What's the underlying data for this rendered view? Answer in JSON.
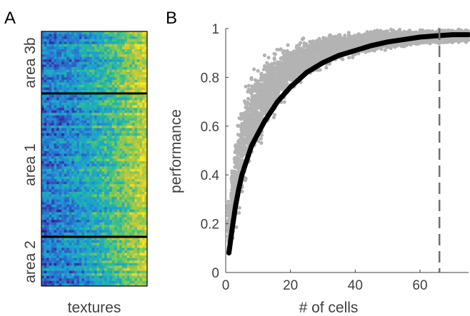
{
  "chart_data": [
    {
      "panel": "A",
      "type": "heatmap",
      "xlabel": "textures",
      "row_groups": [
        "area 3b",
        "area 1",
        "area 2"
      ],
      "colormap": [
        "#3e1a8e",
        "#2c66c9",
        "#1e9bd7",
        "#21b8a7",
        "#77c85a",
        "#c8c83b",
        "#f8e621"
      ]
    },
    {
      "panel": "B",
      "type": "scatter",
      "xlabel": "# of cells",
      "ylabel": "performance",
      "xlim": [
        0,
        75
      ],
      "ylim": [
        0,
        1
      ],
      "xticks": [
        "0",
        "20",
        "40",
        "60"
      ],
      "yticks": [
        "0",
        "0.2",
        "0.4",
        "0.6",
        "0.8",
        "1"
      ],
      "grid": false,
      "series": [
        {
          "kind": "scatter",
          "color": "#b3b3b3",
          "x": [
            1,
            2,
            3,
            4,
            5,
            6,
            7,
            8,
            10,
            12,
            14,
            16,
            18,
            20,
            25,
            30,
            35,
            40,
            45,
            50,
            55,
            60,
            65,
            70,
            75
          ],
          "y_min": [
            0.05,
            0.08,
            0.15,
            0.22,
            0.28,
            0.33,
            0.38,
            0.42,
            0.48,
            0.55,
            0.6,
            0.64,
            0.68,
            0.72,
            0.78,
            0.83,
            0.86,
            0.88,
            0.9,
            0.91,
            0.92,
            0.93,
            0.93,
            0.94,
            0.94
          ],
          "y_max": [
            0.35,
            0.5,
            0.6,
            0.68,
            0.74,
            0.78,
            0.82,
            0.85,
            0.88,
            0.9,
            0.92,
            0.94,
            0.95,
            0.96,
            0.97,
            0.98,
            0.99,
            0.99,
            1.0,
            1.0,
            1.0,
            1.0,
            1.0,
            1.0,
            1.0
          ]
        },
        {
          "kind": "line",
          "color": "#000000",
          "x": [
            1,
            2,
            3,
            4,
            5,
            6,
            7,
            8,
            10,
            12,
            14,
            16,
            18,
            20,
            25,
            30,
            35,
            40,
            45,
            50,
            55,
            60,
            65,
            70,
            75
          ],
          "y": [
            0.08,
            0.18,
            0.27,
            0.34,
            0.4,
            0.44,
            0.48,
            0.52,
            0.57,
            0.62,
            0.66,
            0.7,
            0.73,
            0.76,
            0.82,
            0.86,
            0.89,
            0.91,
            0.93,
            0.945,
            0.955,
            0.965,
            0.97,
            0.975,
            0.975
          ]
        }
      ],
      "reference_line": {
        "x": 66,
        "style": "dashed",
        "color": "#707070"
      }
    }
  ]
}
